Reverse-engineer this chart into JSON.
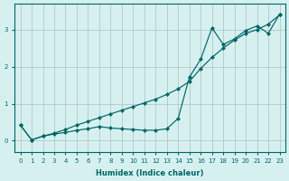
{
  "xlabel": "Humidex (Indice chaleur)",
  "background_color": "#d6f0f0",
  "grid_color": "#b0c8c8",
  "line_color": "#006666",
  "x_ticks": [
    0,
    1,
    2,
    3,
    4,
    5,
    6,
    7,
    8,
    9,
    10,
    11,
    12,
    13,
    14,
    15,
    16,
    17,
    18,
    19,
    20,
    21,
    22,
    23
  ],
  "ylim": [
    -0.3,
    3.7
  ],
  "xlim": [
    -0.5,
    23.5
  ],
  "yticks": [
    0,
    1,
    2,
    3
  ],
  "line_straight_x": [
    0,
    1,
    2,
    3,
    4,
    5,
    6,
    7,
    8,
    9,
    10,
    11,
    12,
    13,
    14,
    15,
    16,
    17,
    18,
    19,
    20,
    21,
    22,
    23
  ],
  "line_straight_y": [
    0.42,
    0.02,
    0.12,
    0.2,
    0.3,
    0.42,
    0.52,
    0.62,
    0.72,
    0.82,
    0.92,
    1.02,
    1.12,
    1.25,
    1.4,
    1.6,
    1.95,
    2.25,
    2.5,
    2.72,
    2.9,
    3.0,
    3.15,
    3.4
  ],
  "line_curve_x": [
    0,
    1,
    2,
    3,
    4,
    5,
    6,
    7,
    8,
    9,
    10,
    11,
    12,
    13,
    14,
    15,
    16,
    17,
    18,
    19,
    20,
    21,
    22,
    23
  ],
  "line_curve_y": [
    0.42,
    0.02,
    0.12,
    0.18,
    0.22,
    0.28,
    0.32,
    0.38,
    0.34,
    0.32,
    0.3,
    0.28,
    0.28,
    0.32,
    0.6,
    1.72,
    2.2,
    3.05,
    2.6,
    2.75,
    2.98,
    3.1,
    2.9,
    3.42
  ]
}
